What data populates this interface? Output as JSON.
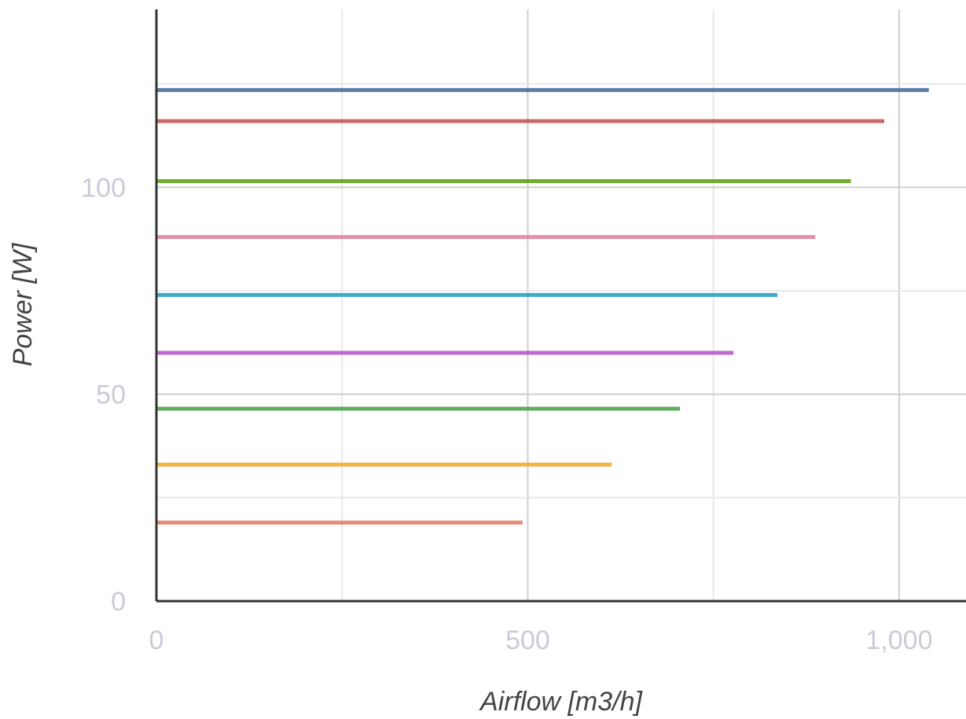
{
  "chart_data": {
    "type": "line",
    "title": "",
    "xlabel": "Airflow [m3/h]",
    "ylabel": "Power [W]",
    "xlim": [
      0,
      1090
    ],
    "ylim": [
      0,
      143
    ],
    "x_ticks": [
      0,
      500,
      1000
    ],
    "x_tick_labels": [
      "0",
      "500",
      "1,000"
    ],
    "y_ticks": [
      0,
      50,
      100
    ],
    "y_tick_labels": [
      "0",
      "50",
      "100"
    ],
    "grid": true,
    "legend": "none",
    "series": [
      {
        "color": "#e07a5f",
        "points": [
          [
            0,
            19
          ],
          [
            493,
            19
          ]
        ]
      },
      {
        "color": "#f5a623",
        "points": [
          [
            0,
            33
          ],
          [
            613,
            33
          ]
        ]
      },
      {
        "color": "#43a047",
        "points": [
          [
            0,
            46.5
          ],
          [
            705,
            46.5
          ]
        ]
      },
      {
        "color": "#b44ec8",
        "points": [
          [
            0,
            60
          ],
          [
            777,
            60
          ]
        ]
      },
      {
        "color": "#1e9cc4",
        "points": [
          [
            0,
            74
          ],
          [
            836,
            74
          ]
        ]
      },
      {
        "color": "#e07aa0",
        "points": [
          [
            0,
            88
          ],
          [
            887,
            88
          ]
        ]
      },
      {
        "color": "#5a9e10",
        "points": [
          [
            0,
            101.5
          ],
          [
            935,
            101.5
          ]
        ]
      },
      {
        "color": "#c0504d",
        "points": [
          [
            0,
            116
          ],
          [
            980,
            116
          ]
        ]
      },
      {
        "color": "#3d6a99",
        "points": [
          [
            0,
            123.5
          ],
          [
            1040,
            123.5
          ]
        ]
      }
    ]
  }
}
